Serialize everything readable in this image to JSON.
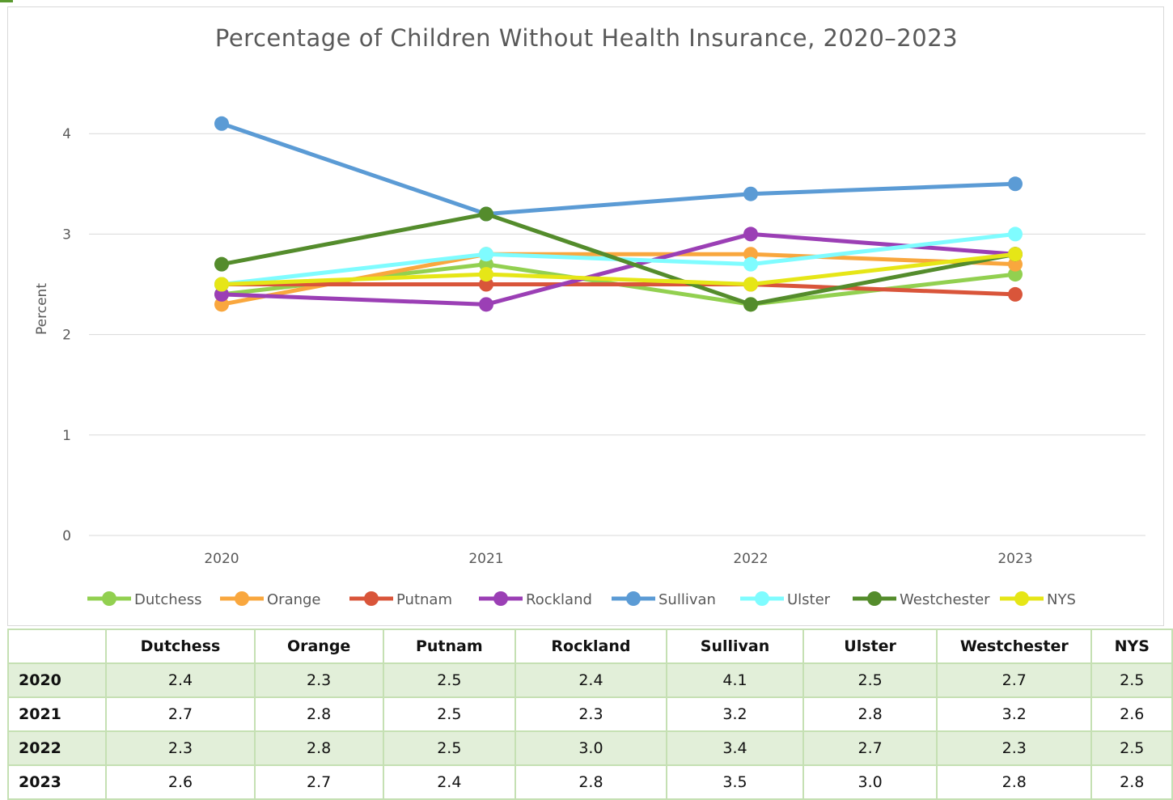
{
  "chart_data": {
    "type": "line",
    "title": "Percentage of Children Without Health Insurance, 2020–2023",
    "xlabel": "",
    "ylabel": "Percent",
    "categories": [
      "2020",
      "2021",
      "2022",
      "2023"
    ],
    "ylim": [
      0,
      4.4
    ],
    "yticks": [
      "0",
      "1",
      "2",
      "3",
      "4"
    ],
    "grid": true,
    "legend_position": "bottom",
    "series": [
      {
        "name": "Dutchess",
        "color": "#92d050",
        "values": [
          2.4,
          2.7,
          2.3,
          2.6
        ]
      },
      {
        "name": "Orange",
        "color": "#f9a73e",
        "values": [
          2.3,
          2.8,
          2.8,
          2.7
        ]
      },
      {
        "name": "Putnam",
        "color": "#d9553a",
        "values": [
          2.5,
          2.5,
          2.5,
          2.4
        ]
      },
      {
        "name": "Rockland",
        "color": "#9b3fb5",
        "values": [
          2.4,
          2.3,
          3.0,
          2.8
        ]
      },
      {
        "name": "Sullivan",
        "color": "#5b9bd5",
        "values": [
          4.1,
          3.2,
          3.4,
          3.5
        ]
      },
      {
        "name": "Ulster",
        "color": "#7ffcff",
        "values": [
          2.5,
          2.8,
          2.7,
          3.0
        ]
      },
      {
        "name": "Westchester",
        "color": "#548c2c",
        "values": [
          2.7,
          3.2,
          2.3,
          2.8
        ]
      },
      {
        "name": "NYS",
        "color": "#e6e617",
        "values": [
          2.5,
          2.6,
          2.5,
          2.8
        ]
      }
    ]
  },
  "table": {
    "headers": [
      "",
      "Dutchess",
      "Orange",
      "Putnam",
      "Rockland",
      "Sullivan",
      "Ulster",
      "Westchester",
      "NYS"
    ],
    "rows": [
      [
        "2020",
        "2.4",
        "2.3",
        "2.5",
        "2.4",
        "4.1",
        "2.5",
        "2.7",
        "2.5"
      ],
      [
        "2021",
        "2.7",
        "2.8",
        "2.5",
        "2.3",
        "3.2",
        "2.8",
        "3.2",
        "2.6"
      ],
      [
        "2022",
        "2.3",
        "2.8",
        "2.5",
        "3.0",
        "3.4",
        "2.7",
        "2.3",
        "2.5"
      ],
      [
        "2023",
        "2.6",
        "2.7",
        "2.4",
        "2.8",
        "3.5",
        "3.0",
        "2.8",
        "2.8"
      ]
    ]
  }
}
